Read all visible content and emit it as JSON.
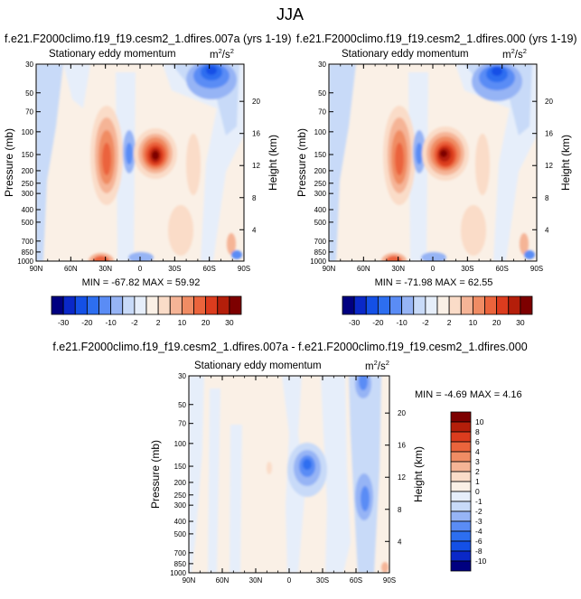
{
  "page_title": "JJA",
  "colors": {
    "text": "#000000",
    "background": "#ffffff",
    "scale": [
      "#000080",
      "#0a28c8",
      "#1450e6",
      "#2d6ef0",
      "#5a8cf5",
      "#96b4f5",
      "#c8daf8",
      "#e6eefa",
      "#faf0e6",
      "#fadcc8",
      "#f5b496",
      "#f08c64",
      "#eb643c",
      "#dc3c1e",
      "#b41e0a",
      "#7d0000"
    ]
  },
  "chart_data": [
    {
      "id": "panel-1",
      "type": "heatmap",
      "title": "f.e21.F2000climo.f19_f19.cesm2_1.dfires.007a (yrs 1-19)",
      "subtitle": "Stationary eddy momentum",
      "units_base": "m",
      "units_exp": "2",
      "units_sep": "/s",
      "units_exp2": "2",
      "ylabel": "Pressure (mb)",
      "ylabel_right": "Height (km)",
      "x_ticks": [
        "90N",
        "60N",
        "30N",
        "0",
        "30S",
        "60S",
        "90S"
      ],
      "y_ticks": [
        "30",
        "50",
        "70",
        "100",
        "150",
        "200",
        "250",
        "300",
        "400",
        "500",
        "700",
        "850",
        "1000"
      ],
      "y_ticks_right": [
        "20",
        "16",
        "12",
        "8",
        "4"
      ],
      "min_max_text": "MIN = -67.82  MAX = 59.92",
      "colorbar_labels": [
        "-30",
        "-20",
        "-10",
        "-2",
        "2",
        "10",
        "20",
        "30"
      ]
    },
    {
      "id": "panel-2",
      "type": "heatmap",
      "title": "f.e21.F2000climo.f19_f19.cesm2_1.dfires.000 (yrs 1-19)",
      "subtitle": "Stationary eddy momentum",
      "units_base": "m",
      "units_exp": "2",
      "units_sep": "/s",
      "units_exp2": "2",
      "ylabel": "Pressure (mb)",
      "ylabel_right": "Height (km)",
      "x_ticks": [
        "90N",
        "60N",
        "30N",
        "0",
        "30S",
        "60S",
        "90S"
      ],
      "y_ticks": [
        "30",
        "50",
        "70",
        "100",
        "150",
        "200",
        "250",
        "300",
        "400",
        "500",
        "700",
        "850",
        "1000"
      ],
      "y_ticks_right": [
        "20",
        "16",
        "12",
        "8",
        "4"
      ],
      "min_max_text": "MIN = -71.98  MAX = 62.55",
      "colorbar_labels": [
        "-30",
        "-20",
        "-10",
        "-2",
        "2",
        "10",
        "20",
        "30"
      ]
    },
    {
      "id": "panel-diff",
      "type": "heatmap",
      "title": "f.e21.F2000climo.f19_f19.cesm2_1.dfires.007a - f.e21.F2000climo.f19_f19.cesm2_1.dfires.000",
      "subtitle": "Stationary eddy momentum",
      "units_base": "m",
      "units_exp": "2",
      "units_sep": "/s",
      "units_exp2": "2",
      "ylabel": "Pressure (mb)",
      "ylabel_right": "Height (km)",
      "x_ticks": [
        "90N",
        "60N",
        "30N",
        "0",
        "30S",
        "60S",
        "90S"
      ],
      "y_ticks": [
        "30",
        "50",
        "70",
        "100",
        "150",
        "200",
        "250",
        "300",
        "400",
        "500",
        "700",
        "850",
        "1000"
      ],
      "y_ticks_right": [
        "20",
        "16",
        "12",
        "8",
        "4"
      ],
      "min_max_text": "MIN = -4.69  MAX = 4.16",
      "colorbar_labels": [
        "10",
        "8",
        "6",
        "4",
        "3",
        "2",
        "1",
        "0",
        "-1",
        "-2",
        "-3",
        "-4",
        "-6",
        "-8",
        "-10"
      ]
    }
  ]
}
